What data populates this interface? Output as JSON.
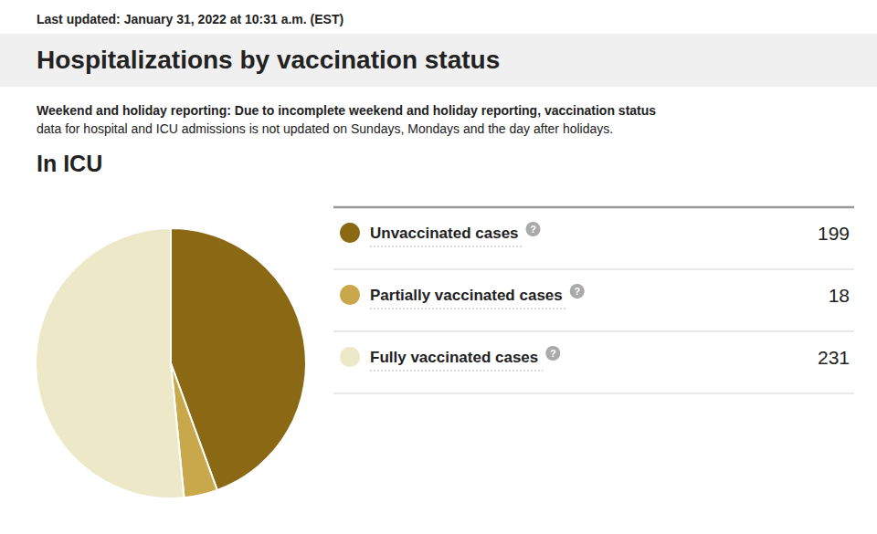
{
  "chart_data": {
    "type": "pie",
    "title": "Hospitalizations by vaccination status",
    "last_updated_bold": "Last updated:",
    "last_updated_rest": " January 31, 2022 at 10:31 a.m. (EST)",
    "subtitle_bold": "Weekend and holiday reporting:",
    "subtitle_line1": " Due to incomplete weekend and holiday reporting, vaccination status",
    "subtitle_line2": "data for hospital and ICU admissions is not updated on Sundays, Mondays and the day after holidays.",
    "section_title": "In ICU",
    "categories": [
      "Unvaccinated cases",
      "Partially vaccinated cases",
      "Fully vaccinated cases"
    ],
    "values": [
      199,
      18,
      231
    ],
    "colors": [
      "#8B6914",
      "#C9A84C",
      "#EDE8C8"
    ],
    "data_labels": true,
    "info_mark": "?"
  }
}
